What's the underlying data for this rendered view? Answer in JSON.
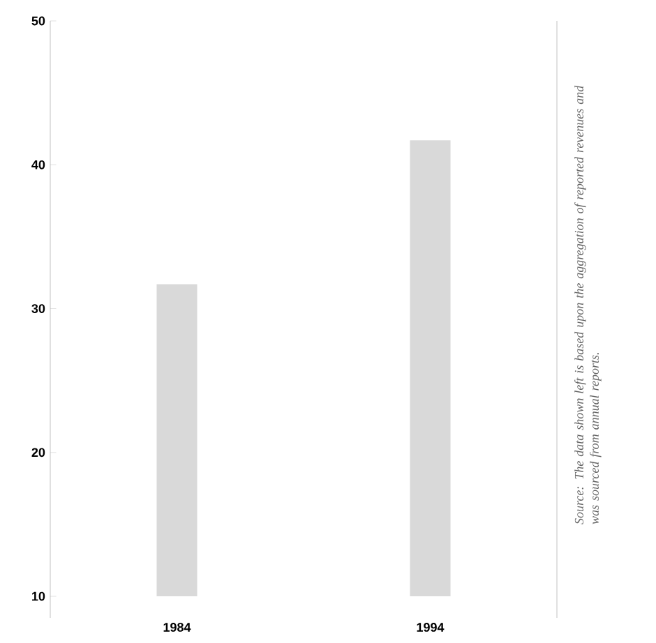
{
  "chart_data": {
    "type": "bar",
    "categories": [
      "1984",
      "1994"
    ],
    "base": [
      10,
      10
    ],
    "values": [
      21.7,
      31.7
    ],
    "color": "#d9d9d9",
    "ylim": [
      8.5,
      50
    ],
    "yticks": [
      10,
      20,
      30,
      40,
      50
    ],
    "annotations": [
      "Source: The data shown left is based upon the aggregation of reported revenues and was sourced from annual reports."
    ]
  }
}
